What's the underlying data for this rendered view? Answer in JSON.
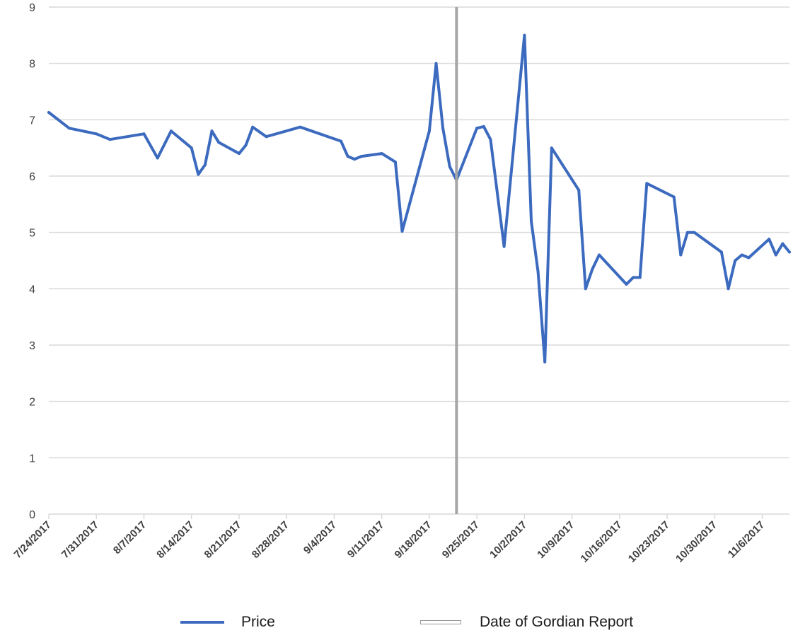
{
  "chart_data": {
    "type": "line",
    "title": "",
    "xlabel": "",
    "ylabel": "",
    "ylim": [
      0,
      9
    ],
    "yticks": [
      "0",
      "1",
      "2",
      "3",
      "4",
      "5",
      "6",
      "7",
      "8",
      "9"
    ],
    "xlim": [
      "2017-07-24",
      "2017-11-10"
    ],
    "xtick_labels": [
      "7/24/2017",
      "7/31/2017",
      "8/7/2017",
      "8/14/2017",
      "8/21/2017",
      "8/28/2017",
      "9/4/2017",
      "9/11/2017",
      "9/18/2017",
      "9/25/2017",
      "10/2/2017",
      "10/9/2017",
      "10/16/2017",
      "10/23/2017",
      "10/30/2017",
      "11/6/2017"
    ],
    "grid": true,
    "legend_position": "bottom",
    "series": [
      {
        "name": "Price",
        "color": "#3b6abf",
        "points": [
          [
            "2017-07-24",
            7.13
          ],
          [
            "2017-07-27",
            6.85
          ],
          [
            "2017-07-31",
            6.75
          ],
          [
            "2017-08-02",
            6.65
          ],
          [
            "2017-08-07",
            6.75
          ],
          [
            "2017-08-09",
            6.32
          ],
          [
            "2017-08-11",
            6.8
          ],
          [
            "2017-08-14",
            6.5
          ],
          [
            "2017-08-15",
            6.03
          ],
          [
            "2017-08-16",
            6.2
          ],
          [
            "2017-08-17",
            6.8
          ],
          [
            "2017-08-18",
            6.6
          ],
          [
            "2017-08-21",
            6.4
          ],
          [
            "2017-08-22",
            6.55
          ],
          [
            "2017-08-23",
            6.87
          ],
          [
            "2017-08-25",
            6.7
          ],
          [
            "2017-08-30",
            6.87
          ],
          [
            "2017-09-05",
            6.62
          ],
          [
            "2017-09-06",
            6.35
          ],
          [
            "2017-09-07",
            6.3
          ],
          [
            "2017-09-08",
            6.35
          ],
          [
            "2017-09-11",
            6.4
          ],
          [
            "2017-09-13",
            6.25
          ],
          [
            "2017-09-14",
            5.02
          ],
          [
            "2017-09-18",
            6.8
          ],
          [
            "2017-09-19",
            8.0
          ],
          [
            "2017-09-20",
            6.85
          ],
          [
            "2017-09-21",
            6.17
          ],
          [
            "2017-09-22",
            5.93
          ],
          [
            "2017-09-25",
            6.85
          ],
          [
            "2017-09-26",
            6.88
          ],
          [
            "2017-09-27",
            6.65
          ],
          [
            "2017-09-29",
            4.75
          ],
          [
            "2017-10-02",
            8.5
          ],
          [
            "2017-10-03",
            5.2
          ],
          [
            "2017-10-04",
            4.3
          ],
          [
            "2017-10-05",
            2.7
          ],
          [
            "2017-10-06",
            6.5
          ],
          [
            "2017-10-10",
            5.75
          ],
          [
            "2017-10-11",
            4.0
          ],
          [
            "2017-10-12",
            4.35
          ],
          [
            "2017-10-13",
            4.6
          ],
          [
            "2017-10-17",
            4.08
          ],
          [
            "2017-10-18",
            4.2
          ],
          [
            "2017-10-19",
            4.2
          ],
          [
            "2017-10-20",
            5.87
          ],
          [
            "2017-10-24",
            5.63
          ],
          [
            "2017-10-25",
            4.6
          ],
          [
            "2017-10-26",
            5.0
          ],
          [
            "2017-10-27",
            5.0
          ],
          [
            "2017-10-31",
            4.65
          ],
          [
            "2017-11-01",
            4.0
          ],
          [
            "2017-11-02",
            4.5
          ],
          [
            "2017-11-03",
            4.6
          ],
          [
            "2017-11-04",
            4.55
          ],
          [
            "2017-11-07",
            4.88
          ],
          [
            "2017-11-08",
            4.6
          ],
          [
            "2017-11-09",
            4.8
          ],
          [
            "2017-11-10",
            4.65
          ]
        ]
      }
    ],
    "reference_line": {
      "name": "Date of Gordian Report",
      "date": "2017-09-22",
      "color": "#a6a6a6"
    }
  }
}
